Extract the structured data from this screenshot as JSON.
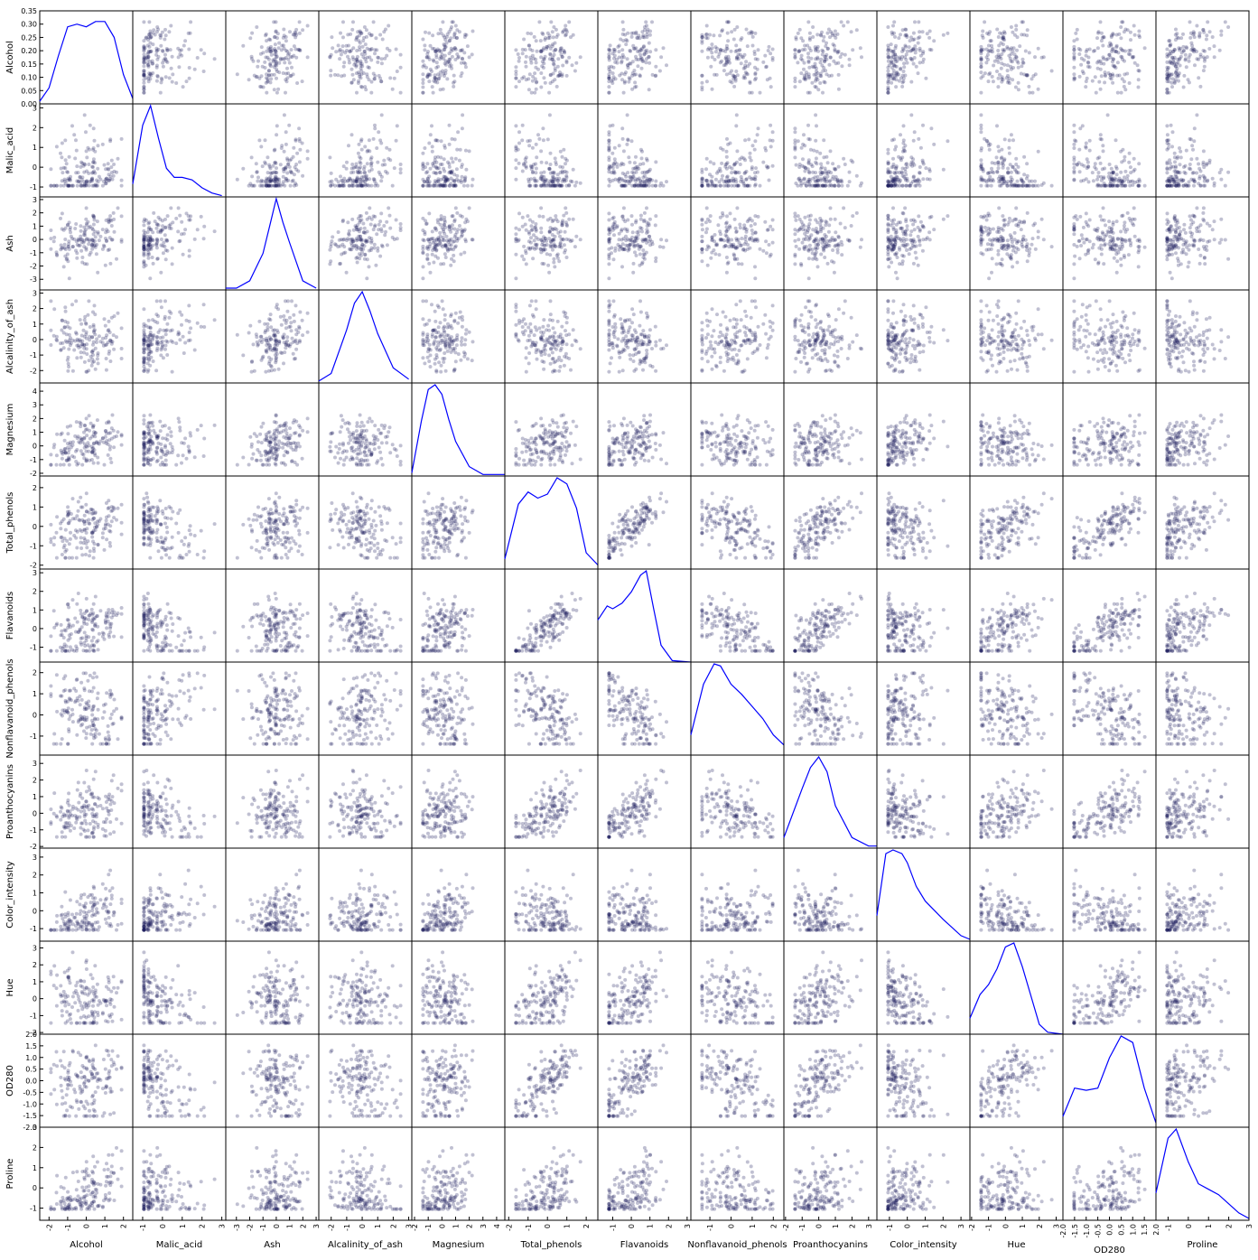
{
  "chart_data": {
    "type": "scatter",
    "variables": [
      "Alcohol",
      "Malic_acid",
      "Ash",
      "Alcalinity_of_ash",
      "Magnesium",
      "Total_phenols",
      "Flavanoids",
      "Nonflavanoid_phenols",
      "Proanthocyanins",
      "Color_intensity",
      "Hue",
      "OD280",
      "Proline"
    ],
    "diagonal": "kde",
    "marker_color": "#1c1c5c",
    "kde_color": "#0000ff",
    "axes": {
      "Alcohol": {
        "range": [
          -2.5,
          2.5
        ],
        "ticks": [
          -2,
          -1,
          0,
          1,
          2
        ],
        "tick_labels": [
          "-2",
          "-1",
          "0",
          "1",
          "2"
        ]
      },
      "Malic_acid": {
        "range": [
          -1.5,
          3.2
        ],
        "ticks": [
          -1,
          0,
          1,
          2,
          3
        ],
        "tick_labels": [
          "-1",
          "0",
          "1",
          "2",
          "3"
        ]
      },
      "Ash": {
        "range": [
          -3.8,
          3.2
        ],
        "ticks": [
          -3,
          -2,
          -1,
          0,
          1,
          2,
          3
        ],
        "tick_labels": [
          "-3",
          "-2",
          "-1",
          "0",
          "1",
          "2",
          "3"
        ]
      },
      "Alcalinity_of_ash": {
        "range": [
          -2.8,
          3.2
        ],
        "ticks": [
          -2,
          -1,
          0,
          1,
          2,
          3
        ],
        "tick_labels": [
          "-2",
          "-1",
          "0",
          "1",
          "2",
          "3"
        ]
      },
      "Magnesium": {
        "range": [
          -2.2,
          4.6
        ],
        "ticks": [
          -2,
          -1,
          0,
          1,
          2,
          3,
          4
        ],
        "tick_labels": [
          "-2",
          "-1",
          "0",
          "1",
          "2",
          "3",
          "4"
        ]
      },
      "Total_phenols": {
        "range": [
          -2.2,
          2.6
        ],
        "ticks": [
          -2,
          -1,
          0,
          1,
          2
        ],
        "tick_labels": [
          "-2",
          "-1",
          "0",
          "1",
          "2"
        ]
      },
      "Flavanoids": {
        "range": [
          -1.8,
          3.2
        ],
        "ticks": [
          -1,
          0,
          1,
          2,
          3
        ],
        "tick_labels": [
          "-1",
          "0",
          "1",
          "2",
          "3"
        ]
      },
      "Nonflavanoid_phenols": {
        "range": [
          -1.9,
          2.5
        ],
        "ticks": [
          -1,
          0,
          1,
          2
        ],
        "tick_labels": [
          "-1",
          "0",
          "1",
          "2"
        ]
      },
      "Proanthocyanins": {
        "range": [
          -2.1,
          3.5
        ],
        "ticks": [
          -2,
          -1,
          0,
          1,
          2,
          3
        ],
        "tick_labels": [
          "-2",
          "-1",
          "0",
          "1",
          "2",
          "3"
        ]
      },
      "Color_intensity": {
        "range": [
          -1.7,
          3.5
        ],
        "ticks": [
          -1,
          0,
          1,
          2,
          3
        ],
        "tick_labels": [
          "-1",
          "0",
          "1",
          "2",
          "3"
        ]
      },
      "Hue": {
        "range": [
          -2.1,
          3.4
        ],
        "ticks": [
          -2,
          -1,
          0,
          1,
          2,
          3
        ],
        "tick_labels": [
          "-2",
          "-1",
          "0",
          "1",
          "2",
          "3"
        ]
      },
      "OD280": {
        "range": [
          -2.0,
          2.0
        ],
        "ticks": [
          -2,
          -1.5,
          -1,
          -0.5,
          0,
          0.5,
          1,
          1.5,
          2
        ],
        "tick_labels": [
          "-2.0",
          "-1.5",
          "-1.0",
          "-0.5",
          "0.0",
          "0.5",
          "1.0",
          "1.5",
          "2.0"
        ],
        "y_ticks": [
          -2,
          -1.5,
          -1,
          -0.5,
          0,
          0.5,
          1,
          1.5,
          2
        ],
        "y_tick_labels": [
          "-2.0",
          "-1.5",
          "-1.0",
          "-0.5",
          "0.0",
          "0.5",
          "1.0",
          "1.5",
          "2.0"
        ]
      },
      "Proline": {
        "range": [
          -1.6,
          3.0
        ],
        "ticks": [
          -1,
          0,
          1,
          2,
          3
        ],
        "tick_labels": [
          "-1",
          "0",
          "1",
          "2",
          "3"
        ]
      }
    },
    "kde_first_cell_y": {
      "range": [
        0,
        0.35
      ],
      "ticks": [
        0,
        0.05,
        0.1,
        0.15,
        0.2,
        0.25,
        0.3,
        0.35
      ],
      "tick_labels": [
        "0.00",
        "0.05",
        "0.10",
        "0.15",
        "0.20",
        "0.25",
        "0.30",
        "0.35"
      ]
    },
    "kde_curves": {
      "Alcohol": {
        "x": [
          -2.5,
          -2.0,
          -1.5,
          -1.0,
          -0.5,
          0.0,
          0.5,
          1.0,
          1.5,
          2.0,
          2.5
        ],
        "y": [
          0.01,
          0.06,
          0.18,
          0.29,
          0.3,
          0.29,
          0.31,
          0.31,
          0.25,
          0.11,
          0.02
        ]
      },
      "Malic_acid": {
        "x": [
          -1.5,
          -1.0,
          -0.6,
          -0.2,
          0.2,
          0.6,
          1.0,
          1.5,
          2.0,
          2.5,
          3.0
        ],
        "y": [
          0.1,
          0.55,
          0.7,
          0.45,
          0.22,
          0.15,
          0.15,
          0.13,
          0.07,
          0.03,
          0.01
        ]
      },
      "Ash": {
        "x": [
          -3.8,
          -3.0,
          -2.0,
          -1.0,
          -0.5,
          0.0,
          0.5,
          1.0,
          2.0,
          3.0
        ],
        "y": [
          0.01,
          0.01,
          0.05,
          0.2,
          0.35,
          0.5,
          0.37,
          0.26,
          0.05,
          0.01
        ]
      },
      "Alcalinity_of_ash": {
        "x": [
          -2.8,
          -2.0,
          -1.0,
          -0.5,
          0.0,
          0.5,
          1.0,
          2.0,
          3.0
        ],
        "y": [
          0.01,
          0.05,
          0.28,
          0.42,
          0.48,
          0.38,
          0.26,
          0.08,
          0.02
        ]
      },
      "Magnesium": {
        "x": [
          -2.2,
          -1.5,
          -1.0,
          -0.5,
          0.0,
          0.5,
          1.0,
          2.0,
          3.0,
          4.6
        ],
        "y": [
          0.02,
          0.35,
          0.55,
          0.58,
          0.52,
          0.36,
          0.22,
          0.06,
          0.01,
          0.01
        ]
      },
      "Total_phenols": {
        "x": [
          -2.2,
          -1.5,
          -1.0,
          -0.5,
          0.0,
          0.5,
          1.0,
          1.5,
          2.0,
          2.6
        ],
        "y": [
          0.05,
          0.32,
          0.38,
          0.35,
          0.37,
          0.45,
          0.42,
          0.3,
          0.08,
          0.02
        ]
      },
      "Flavanoids": {
        "x": [
          -1.8,
          -1.3,
          -1.0,
          -0.5,
          0.0,
          0.5,
          0.8,
          1.2,
          1.6,
          2.2,
          3.2
        ],
        "y": [
          0.3,
          0.4,
          0.38,
          0.42,
          0.5,
          0.62,
          0.65,
          0.38,
          0.12,
          0.01,
          0.0
        ]
      },
      "Nonflavanoid_phenols": {
        "x": [
          -1.9,
          -1.3,
          -0.8,
          -0.5,
          0.0,
          0.5,
          1.0,
          1.5,
          2.0,
          2.5
        ],
        "y": [
          0.1,
          0.35,
          0.45,
          0.44,
          0.35,
          0.3,
          0.24,
          0.18,
          0.1,
          0.05
        ]
      },
      "Proanthocyanins": {
        "x": [
          -2.1,
          -1.0,
          -0.5,
          0.0,
          0.5,
          1.0,
          2.0,
          3.0,
          3.5
        ],
        "y": [
          0.05,
          0.28,
          0.38,
          0.43,
          0.36,
          0.2,
          0.05,
          0.01,
          0.01
        ]
      },
      "Color_intensity": {
        "x": [
          -1.7,
          -1.2,
          -0.8,
          -0.3,
          0.0,
          0.5,
          1.0,
          2.0,
          3.0,
          3.5
        ],
        "y": [
          0.14,
          0.48,
          0.5,
          0.48,
          0.43,
          0.3,
          0.22,
          0.12,
          0.03,
          0.01
        ]
      },
      "Hue": {
        "x": [
          -2.1,
          -1.5,
          -1.0,
          -0.5,
          0.0,
          0.5,
          1.0,
          2.0,
          2.5,
          3.4
        ],
        "y": [
          0.08,
          0.2,
          0.25,
          0.33,
          0.44,
          0.46,
          0.34,
          0.05,
          0.01,
          0.0
        ]
      },
      "OD280": {
        "x": [
          -2.0,
          -1.5,
          -1.0,
          -0.5,
          0.0,
          0.5,
          1.0,
          1.5,
          2.0
        ],
        "y": [
          0.05,
          0.18,
          0.17,
          0.18,
          0.32,
          0.42,
          0.39,
          0.18,
          0.02
        ]
      },
      "Proline": {
        "x": [
          -1.6,
          -1.0,
          -0.6,
          0.0,
          0.5,
          1.0,
          1.5,
          2.0,
          2.5,
          3.0
        ],
        "y": [
          0.15,
          0.45,
          0.5,
          0.32,
          0.2,
          0.17,
          0.14,
          0.09,
          0.04,
          0.01
        ]
      }
    },
    "scatter_pair_count": 156,
    "observations_note_free": true
  }
}
